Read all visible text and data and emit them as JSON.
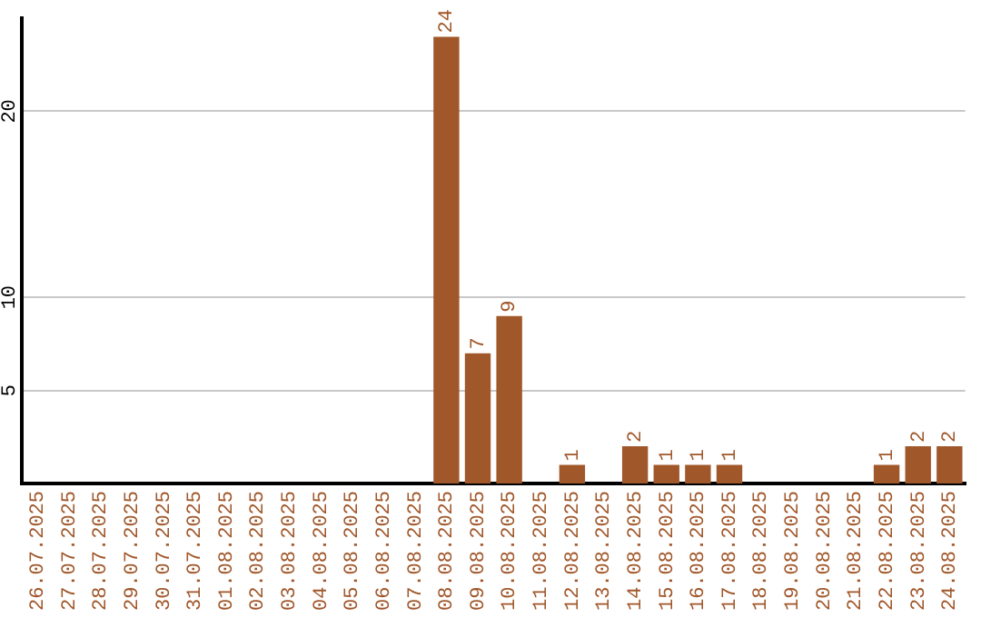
{
  "chart_data": {
    "type": "bar",
    "categories": [
      "26.07.2025",
      "27.07.2025",
      "28.07.2025",
      "29.07.2025",
      "30.07.2025",
      "31.07.2025",
      "01.08.2025",
      "02.08.2025",
      "03.08.2025",
      "04.08.2025",
      "05.08.2025",
      "06.08.2025",
      "07.08.2025",
      "08.08.2025",
      "09.08.2025",
      "10.08.2025",
      "11.08.2025",
      "12.08.2025",
      "13.08.2025",
      "14.08.2025",
      "15.08.2025",
      "16.08.2025",
      "17.08.2025",
      "18.08.2025",
      "19.08.2025",
      "20.08.2025",
      "21.08.2025",
      "22.08.2025",
      "23.08.2025",
      "24.08.2025"
    ],
    "values": [
      0,
      0,
      0,
      0,
      0,
      0,
      0,
      0,
      0,
      0,
      0,
      0,
      0,
      24,
      7,
      9,
      0,
      1,
      0,
      2,
      1,
      1,
      1,
      0,
      0,
      0,
      0,
      1,
      2,
      2
    ],
    "value_labels": [
      null,
      null,
      null,
      null,
      null,
      null,
      null,
      null,
      null,
      null,
      null,
      null,
      null,
      "24",
      "7",
      "9",
      null,
      "1",
      null,
      "2",
      "1",
      "1",
      "1",
      null,
      null,
      null,
      null,
      "1",
      "2",
      "2"
    ],
    "color": "#a0572a",
    "ylim": [
      0,
      25
    ],
    "yticks": [
      5,
      10,
      20
    ],
    "grid": "y",
    "legend": false
  }
}
